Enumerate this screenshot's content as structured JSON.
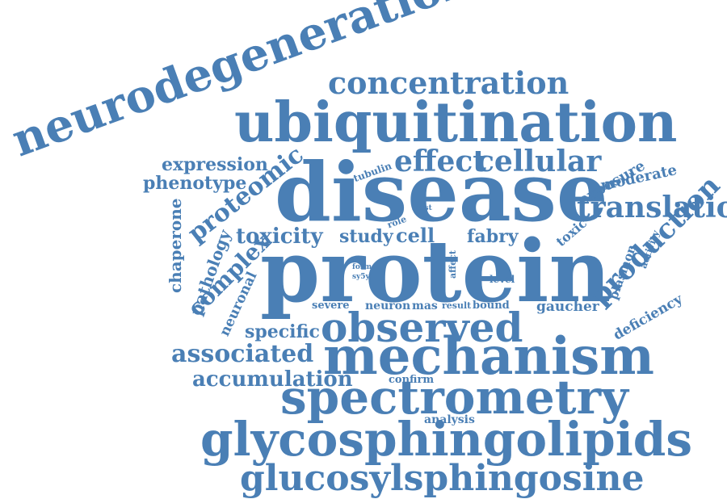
{
  "color": "#4a7fb5",
  "words": [
    "protein",
    "disease",
    "mechanism",
    "ubiquitination",
    "neurodegeneration",
    "glycosphingolipids",
    "spectrometry",
    "glucosylsphingosine",
    "observed",
    "concentration",
    "production",
    "translation",
    "cellular",
    "effect",
    "associated",
    "accumulation",
    "proteomic",
    "complex",
    "toxicity",
    "expression",
    "phenotype",
    "specific",
    "study",
    "cell",
    "fabry",
    "chaperone",
    "pathology",
    "neuronal",
    "moderate",
    "exposure",
    "deficiency",
    "gaucher",
    "plasmon",
    "toxic",
    "activity",
    "tubulin",
    "analysis",
    "confirm",
    "severe",
    "neuron",
    "mas",
    "result",
    "bound",
    "level",
    "role",
    "most",
    "form",
    "sy5y",
    "affect"
  ]
}
